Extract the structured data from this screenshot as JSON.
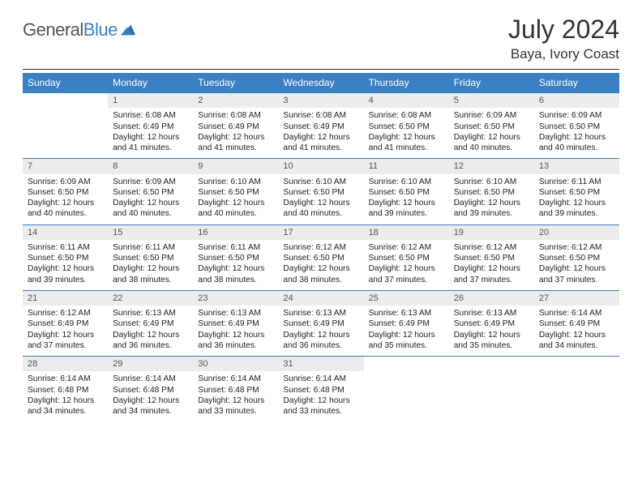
{
  "brand": {
    "part1": "General",
    "part2": "Blue"
  },
  "title": "July 2024",
  "location": "Baya, Ivory Coast",
  "colors": {
    "header_bg": "#3b7fc4",
    "header_text": "#ffffff",
    "daynum_bg": "#ececec",
    "rule": "#3b7fc4"
  },
  "weekdays": [
    "Sunday",
    "Monday",
    "Tuesday",
    "Wednesday",
    "Thursday",
    "Friday",
    "Saturday"
  ],
  "cells": [
    [
      null,
      {
        "n": "1",
        "sr": "6:08 AM",
        "ss": "6:49 PM",
        "dl": "12 hours and 41 minutes."
      },
      {
        "n": "2",
        "sr": "6:08 AM",
        "ss": "6:49 PM",
        "dl": "12 hours and 41 minutes."
      },
      {
        "n": "3",
        "sr": "6:08 AM",
        "ss": "6:49 PM",
        "dl": "12 hours and 41 minutes."
      },
      {
        "n": "4",
        "sr": "6:08 AM",
        "ss": "6:50 PM",
        "dl": "12 hours and 41 minutes."
      },
      {
        "n": "5",
        "sr": "6:09 AM",
        "ss": "6:50 PM",
        "dl": "12 hours and 40 minutes."
      },
      {
        "n": "6",
        "sr": "6:09 AM",
        "ss": "6:50 PM",
        "dl": "12 hours and 40 minutes."
      }
    ],
    [
      {
        "n": "7",
        "sr": "6:09 AM",
        "ss": "6:50 PM",
        "dl": "12 hours and 40 minutes."
      },
      {
        "n": "8",
        "sr": "6:09 AM",
        "ss": "6:50 PM",
        "dl": "12 hours and 40 minutes."
      },
      {
        "n": "9",
        "sr": "6:10 AM",
        "ss": "6:50 PM",
        "dl": "12 hours and 40 minutes."
      },
      {
        "n": "10",
        "sr": "6:10 AM",
        "ss": "6:50 PM",
        "dl": "12 hours and 40 minutes."
      },
      {
        "n": "11",
        "sr": "6:10 AM",
        "ss": "6:50 PM",
        "dl": "12 hours and 39 minutes."
      },
      {
        "n": "12",
        "sr": "6:10 AM",
        "ss": "6:50 PM",
        "dl": "12 hours and 39 minutes."
      },
      {
        "n": "13",
        "sr": "6:11 AM",
        "ss": "6:50 PM",
        "dl": "12 hours and 39 minutes."
      }
    ],
    [
      {
        "n": "14",
        "sr": "6:11 AM",
        "ss": "6:50 PM",
        "dl": "12 hours and 39 minutes."
      },
      {
        "n": "15",
        "sr": "6:11 AM",
        "ss": "6:50 PM",
        "dl": "12 hours and 38 minutes."
      },
      {
        "n": "16",
        "sr": "6:11 AM",
        "ss": "6:50 PM",
        "dl": "12 hours and 38 minutes."
      },
      {
        "n": "17",
        "sr": "6:12 AM",
        "ss": "6:50 PM",
        "dl": "12 hours and 38 minutes."
      },
      {
        "n": "18",
        "sr": "6:12 AM",
        "ss": "6:50 PM",
        "dl": "12 hours and 37 minutes."
      },
      {
        "n": "19",
        "sr": "6:12 AM",
        "ss": "6:50 PM",
        "dl": "12 hours and 37 minutes."
      },
      {
        "n": "20",
        "sr": "6:12 AM",
        "ss": "6:50 PM",
        "dl": "12 hours and 37 minutes."
      }
    ],
    [
      {
        "n": "21",
        "sr": "6:12 AM",
        "ss": "6:49 PM",
        "dl": "12 hours and 37 minutes."
      },
      {
        "n": "22",
        "sr": "6:13 AM",
        "ss": "6:49 PM",
        "dl": "12 hours and 36 minutes."
      },
      {
        "n": "23",
        "sr": "6:13 AM",
        "ss": "6:49 PM",
        "dl": "12 hours and 36 minutes."
      },
      {
        "n": "24",
        "sr": "6:13 AM",
        "ss": "6:49 PM",
        "dl": "12 hours and 36 minutes."
      },
      {
        "n": "25",
        "sr": "6:13 AM",
        "ss": "6:49 PM",
        "dl": "12 hours and 35 minutes."
      },
      {
        "n": "26",
        "sr": "6:13 AM",
        "ss": "6:49 PM",
        "dl": "12 hours and 35 minutes."
      },
      {
        "n": "27",
        "sr": "6:14 AM",
        "ss": "6:49 PM",
        "dl": "12 hours and 34 minutes."
      }
    ],
    [
      {
        "n": "28",
        "sr": "6:14 AM",
        "ss": "6:48 PM",
        "dl": "12 hours and 34 minutes."
      },
      {
        "n": "29",
        "sr": "6:14 AM",
        "ss": "6:48 PM",
        "dl": "12 hours and 34 minutes."
      },
      {
        "n": "30",
        "sr": "6:14 AM",
        "ss": "6:48 PM",
        "dl": "12 hours and 33 minutes."
      },
      {
        "n": "31",
        "sr": "6:14 AM",
        "ss": "6:48 PM",
        "dl": "12 hours and 33 minutes."
      },
      null,
      null,
      null
    ]
  ],
  "labels": {
    "sunrise": "Sunrise:",
    "sunset": "Sunset:",
    "daylight": "Daylight:"
  }
}
